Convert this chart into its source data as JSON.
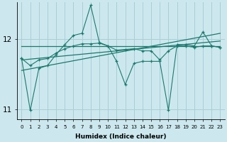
{
  "xlabel": "Humidex (Indice chaleur)",
  "bg_color": "#cce8ee",
  "grid_color": "#aacdd6",
  "line_color": "#1a7a6e",
  "xlim": [
    -0.5,
    23.5
  ],
  "ylim": [
    10.85,
    12.52
  ],
  "yticks": [
    11,
    12
  ],
  "xticks": [
    0,
    1,
    2,
    3,
    4,
    5,
    6,
    7,
    8,
    9,
    10,
    11,
    12,
    13,
    14,
    15,
    16,
    17,
    18,
    19,
    20,
    21,
    22,
    23
  ],
  "y_main": [
    11.72,
    10.98,
    11.58,
    11.62,
    11.78,
    11.92,
    12.05,
    12.08,
    12.48,
    11.95,
    11.9,
    11.68,
    11.35,
    11.65,
    11.68,
    11.68,
    11.68,
    10.98,
    11.92,
    11.92,
    11.9,
    12.1,
    11.9,
    11.88
  ],
  "y_smooth": [
    11.72,
    11.62,
    11.7,
    11.72,
    11.8,
    11.86,
    11.9,
    11.93,
    11.93,
    11.94,
    11.9,
    11.84,
    11.85,
    11.86,
    11.83,
    11.83,
    11.7,
    11.83,
    11.9,
    11.9,
    11.88,
    11.9,
    11.9,
    11.88
  ],
  "trend_flat": [
    11.9,
    11.9
  ],
  "trend_rise1": [
    11.55,
    12.08
  ],
  "trend_rise2": [
    11.7,
    11.97
  ]
}
